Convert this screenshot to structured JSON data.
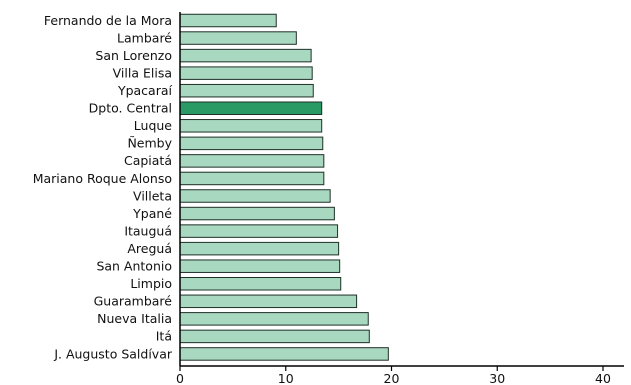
{
  "chart_data": {
    "type": "bar",
    "orientation": "horizontal",
    "categories": [
      "Fernando de la Mora",
      "Lambaré",
      "San Lorenzo",
      "Villa Elisa",
      "Ypacaraí",
      "Dpto. Central",
      "Luque",
      "Ñemby",
      "Capiatá",
      "Mariano Roque Alonso",
      "Villeta",
      "Ypané",
      "Itauguá",
      "Areguá",
      "San Antonio",
      "Limpio",
      "Guarambaré",
      "Nueva Italia",
      "Itá",
      "J. Augusto Saldívar"
    ],
    "values": [
      9.1,
      11.0,
      12.4,
      12.5,
      12.6,
      13.4,
      13.4,
      13.5,
      13.6,
      13.6,
      14.2,
      14.6,
      14.9,
      15.0,
      15.1,
      15.2,
      16.7,
      17.8,
      17.9,
      19.7
    ],
    "highlight": "Dpto. Central",
    "xlim": [
      0,
      40
    ],
    "xticks": [
      0,
      10,
      20,
      30,
      40
    ],
    "grid": false,
    "title": "",
    "xlabel": "",
    "ylabel": "",
    "colors": {
      "bar": "#a8d8c0",
      "highlight": "#2a9a64",
      "bar_edge": "#1f2f28",
      "axis": "#000000"
    }
  }
}
